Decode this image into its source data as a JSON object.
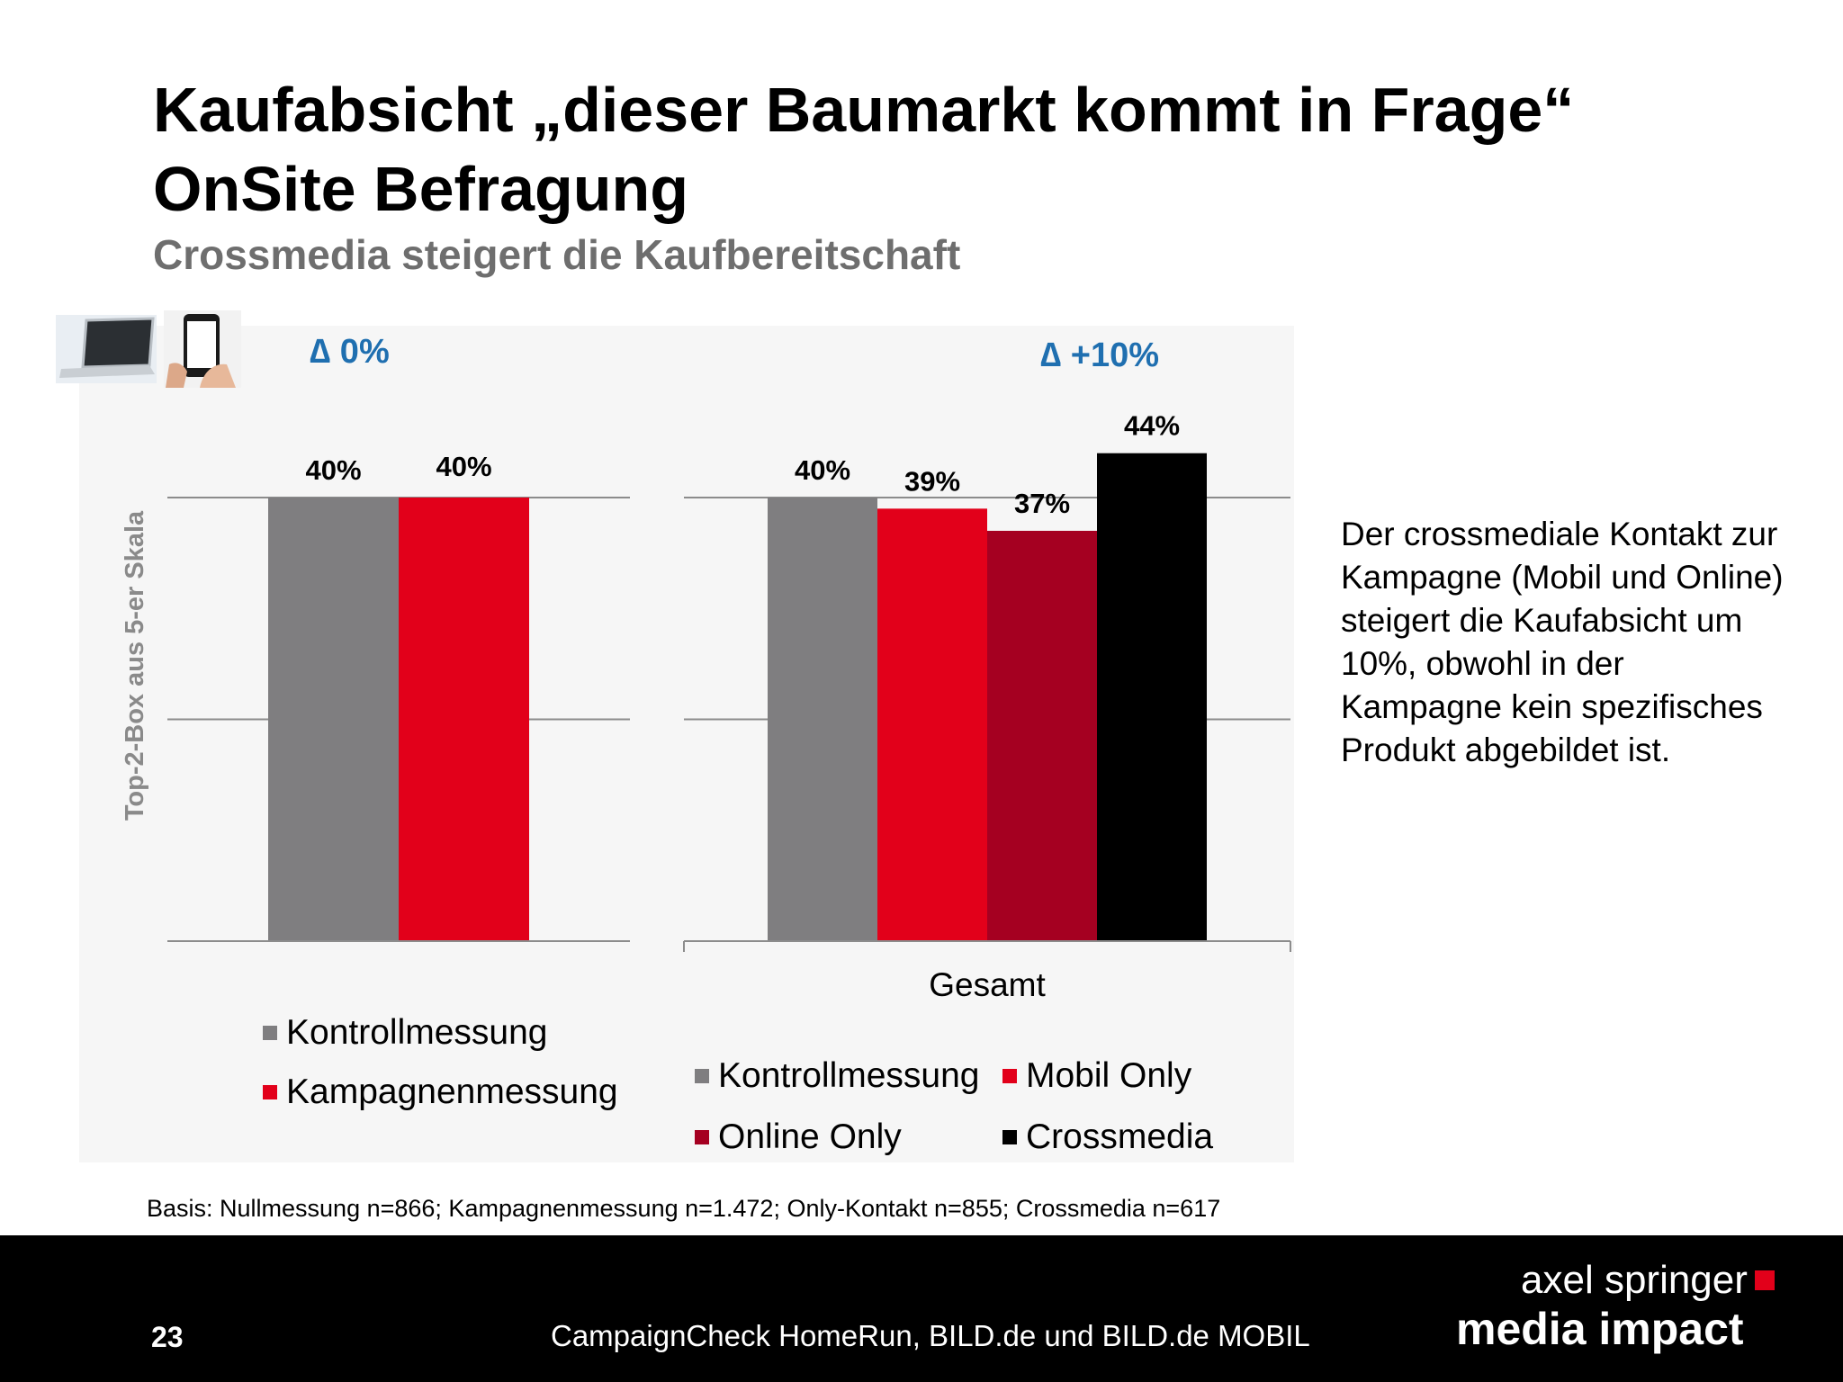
{
  "title_line1": "Kaufabsicht „dieser Baumarkt kommt in Frage“",
  "title_line2": "OnSite Befragung",
  "subtitle": "Crossmedia steigert die Kaufbereitschaft",
  "icons": [
    "laptop-icon",
    "smartphone-icon"
  ],
  "colors": {
    "kontrollmessung": "#7f7e80",
    "kampagnenmessung": "#e2001a",
    "mobil_only": "#e2001a",
    "online_only": "#a50021",
    "crossmedia": "#000000",
    "delta": "#1f6fb0"
  },
  "chart_data": [
    {
      "type": "bar",
      "categories": [
        "Kontrollmessung",
        "Kampagnenmessung"
      ],
      "values": [
        40,
        40
      ],
      "value_labels": [
        "40%",
        "40%"
      ],
      "ylabel": "Top-2-Box aus 5-er Skala",
      "ylim": [
        0,
        40
      ],
      "grid": true,
      "delta_label": "∆ 0%",
      "legend": [
        "Kontrollmessung",
        "Kampagnenmessung"
      ],
      "legend_placement": "bottom"
    },
    {
      "type": "bar",
      "x_group": "Gesamt",
      "categories": [
        "Kontrollmessung",
        "Mobil Only",
        "Online Only",
        "Crossmedia"
      ],
      "values": [
        40,
        39,
        37,
        44
      ],
      "value_labels": [
        "40%",
        "39%",
        "37%",
        "44%"
      ],
      "ylim": [
        0,
        40
      ],
      "grid": true,
      "delta_label": "∆ +10%",
      "legend": [
        "Kontrollmessung",
        "Mobil Only",
        "Online Only",
        "Crossmedia"
      ],
      "legend_placement": "bottom"
    }
  ],
  "body_text": "Der crossmediale Kontakt zur Kampagne (Mobil und Online) steigert die Kaufabsicht um 10%, obwohl in der Kampagne kein spezifisches Produkt abgebildet ist.",
  "basis": "Basis: Nullmessung n=866; Kampagnenmessung n=1.472; Only-Kontakt n=855; Crossmedia n=617",
  "footer": {
    "page_number": "23",
    "source": "CampaignCheck HomeRun, BILD.de und BILD.de MOBIL",
    "brand_line1": "axel springer",
    "brand_line2": "media impact"
  }
}
